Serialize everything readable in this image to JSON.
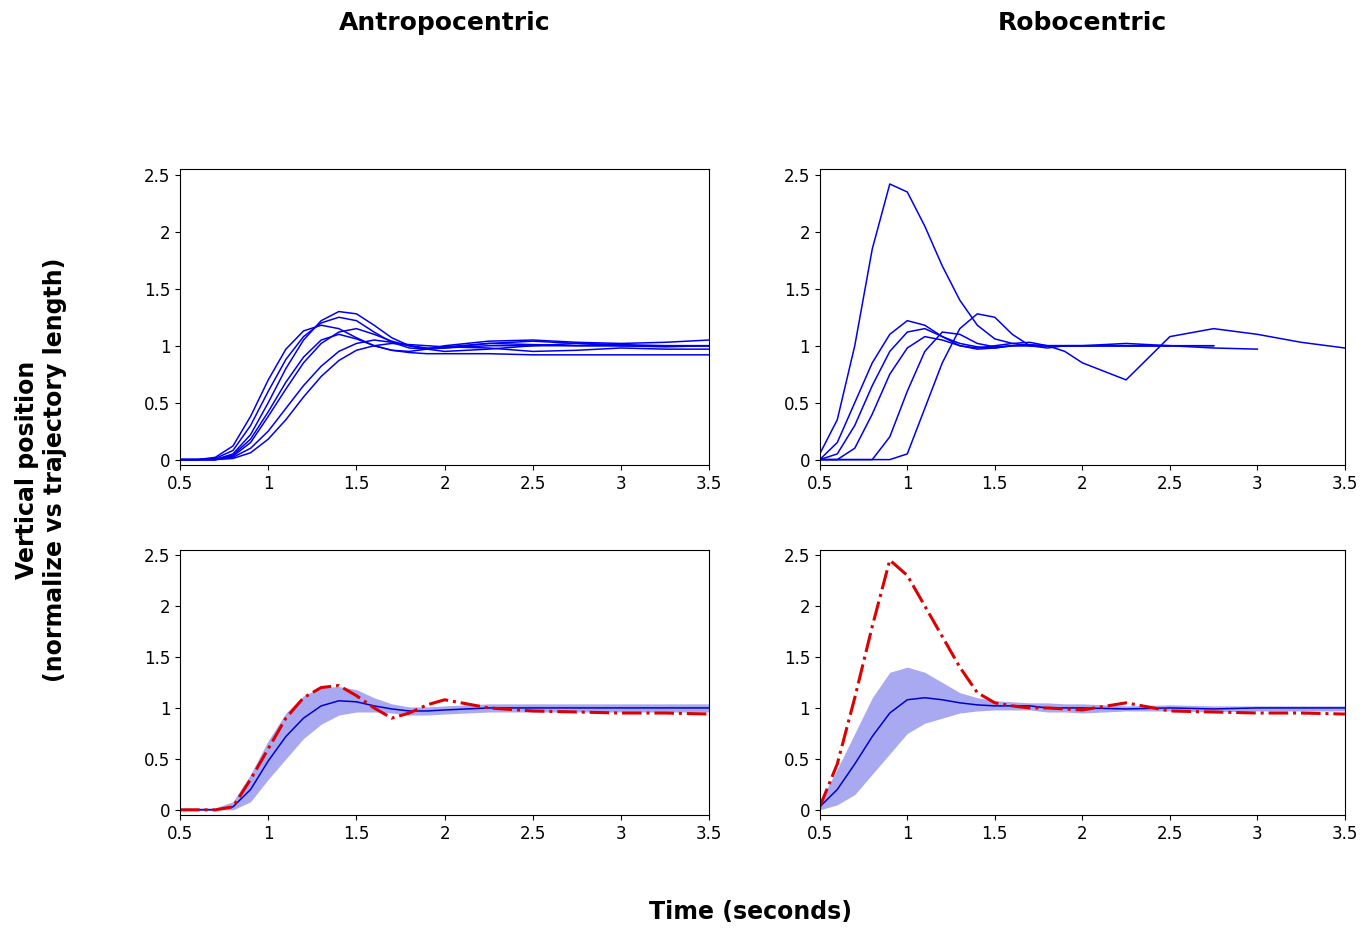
{
  "xlabel": "Time (seconds)",
  "ylabel": "Vertical position\n(normalize vs trajectory length)",
  "chart_data": [
    {
      "type": "line",
      "title": "Antropocentric",
      "x": [
        0.5,
        0.6,
        0.7,
        0.8,
        0.9,
        1.0,
        1.1,
        1.2,
        1.3,
        1.4,
        1.5,
        1.6,
        1.7,
        1.8,
        1.9,
        2.0,
        2.25,
        2.5,
        2.75,
        3.0,
        3.25,
        3.5
      ],
      "xlim": [
        0.5,
        3.5
      ],
      "xticks": [
        0.5,
        1,
        1.5,
        2,
        2.5,
        3,
        3.5
      ],
      "ylim": [
        -0.05,
        2.55
      ],
      "yticks": [
        0,
        0.5,
        1,
        1.5,
        2,
        2.5
      ],
      "series": [
        {
          "color": "#0000ee",
          "line_style": "solid",
          "values": [
            0,
            0,
            0.01,
            0.08,
            0.3,
            0.6,
            0.88,
            1.08,
            1.2,
            1.25,
            1.22,
            1.12,
            1.03,
            0.98,
            0.97,
            0.99,
            1.02,
            1.01,
            1.0,
            1.0,
            1.0,
            1.0
          ]
        },
        {
          "color": "#0000ee",
          "line_style": "solid",
          "values": [
            0,
            0,
            0,
            0.03,
            0.15,
            0.38,
            0.62,
            0.85,
            1.02,
            1.12,
            1.15,
            1.1,
            1.04,
            1.0,
            0.98,
            0.98,
            1.0,
            1.0,
            1.0,
            1.0,
            1.0,
            1.0
          ]
        },
        {
          "color": "#0000ee",
          "line_style": "solid",
          "values": [
            0,
            0,
            0,
            0.02,
            0.1,
            0.25,
            0.45,
            0.65,
            0.82,
            0.95,
            1.02,
            1.05,
            1.03,
            1.0,
            0.97,
            0.95,
            0.97,
            1.0,
            1.02,
            1.01,
            1.0,
            1.0
          ]
        },
        {
          "color": "#0000ee",
          "line_style": "solid",
          "values": [
            0,
            0,
            0,
            0.05,
            0.22,
            0.5,
            0.8,
            1.05,
            1.22,
            1.3,
            1.28,
            1.18,
            1.07,
            1.0,
            0.97,
            0.98,
            1.02,
            1.04,
            1.02,
            1.0,
            0.99,
            1.0
          ]
        },
        {
          "color": "#0000ee",
          "line_style": "solid",
          "values": [
            0,
            0,
            0,
            0.01,
            0.06,
            0.18,
            0.35,
            0.55,
            0.73,
            0.87,
            0.96,
            1.0,
            1.02,
            1.01,
            1.0,
            0.99,
            0.98,
            0.95,
            0.96,
            0.98,
            0.97,
            0.97
          ]
        },
        {
          "color": "#0000ee",
          "line_style": "solid",
          "values": [
            0,
            0,
            0.02,
            0.12,
            0.38,
            0.7,
            0.97,
            1.13,
            1.18,
            1.15,
            1.07,
            1.0,
            0.96,
            0.95,
            0.97,
            1.0,
            1.04,
            1.05,
            1.03,
            1.02,
            1.03,
            1.05
          ]
        },
        {
          "color": "#0000ee",
          "line_style": "solid",
          "values": [
            0,
            0,
            0,
            0.04,
            0.18,
            0.42,
            0.68,
            0.9,
            1.05,
            1.1,
            1.06,
            1.0,
            0.96,
            0.94,
            0.93,
            0.93,
            0.93,
            0.92,
            0.92,
            0.92,
            0.92,
            0.92
          ]
        }
      ]
    },
    {
      "type": "line",
      "title": "Robocentric",
      "x": [
        0.5,
        0.6,
        0.7,
        0.8,
        0.9,
        1.0,
        1.1,
        1.2,
        1.3,
        1.4,
        1.5,
        1.6,
        1.7,
        1.8,
        1.9,
        2.0,
        2.25,
        2.5,
        2.75,
        3.0,
        3.25,
        3.5
      ],
      "xlim": [
        0.5,
        3.5
      ],
      "xticks": [
        0.5,
        1,
        1.5,
        2,
        2.5,
        3,
        3.5
      ],
      "ylim": [
        -0.05,
        2.55
      ],
      "yticks": [
        0,
        0.5,
        1,
        1.5,
        2,
        2.5
      ],
      "series": [
        {
          "color": "#0000ee",
          "line_style": "solid",
          "values": [
            0.05,
            0.35,
            1.0,
            1.85,
            2.42,
            2.35,
            2.05,
            1.7,
            1.4,
            1.18,
            1.06,
            1.02,
            1.0,
            1.0,
            1.0,
            1.0,
            1.0,
            1.0,
            1.0,
            null,
            null,
            null
          ]
        },
        {
          "color": "#0000ee",
          "line_style": "solid",
          "values": [
            0,
            0.15,
            0.5,
            0.85,
            1.1,
            1.22,
            1.18,
            1.08,
            1.0,
            0.97,
            0.98,
            1.0,
            1.0,
            1.0,
            1.0,
            1.0,
            1.0,
            1.0,
            null,
            null,
            null,
            null
          ]
        },
        {
          "color": "#0000ee",
          "line_style": "solid",
          "values": [
            0,
            0.05,
            0.3,
            0.65,
            0.95,
            1.12,
            1.15,
            1.08,
            1.02,
            0.99,
            0.98,
            1.0,
            1.01,
            1.0,
            1.0,
            1.0,
            1.02,
            1.0,
            1.0,
            null,
            null,
            null
          ]
        },
        {
          "color": "#0000ee",
          "line_style": "solid",
          "values": [
            0,
            0,
            0,
            0,
            0,
            0.05,
            0.45,
            0.85,
            1.15,
            1.28,
            1.25,
            1.1,
            1.0,
            0.98,
            1.0,
            1.0,
            1.0,
            1.0,
            0.98,
            0.97,
            null,
            null
          ]
        },
        {
          "color": "#0000ee",
          "line_style": "solid",
          "values": [
            0,
            0,
            0.1,
            0.4,
            0.75,
            0.98,
            1.08,
            1.05,
            1.0,
            0.98,
            1.0,
            1.02,
            1.03,
            1.0,
            0.95,
            0.85,
            0.7,
            1.08,
            1.15,
            1.1,
            1.03,
            0.98
          ]
        },
        {
          "color": "#0000ee",
          "line_style": "solid",
          "values": [
            0,
            0,
            0,
            0,
            0.2,
            0.6,
            0.95,
            1.12,
            1.1,
            1.02,
            0.99,
            1.0,
            1.0,
            1.0,
            1.0,
            1.0,
            1.0,
            1.0,
            null,
            null,
            null,
            null
          ]
        }
      ]
    },
    {
      "type": "line",
      "x": [
        0.5,
        0.6,
        0.7,
        0.8,
        0.9,
        1.0,
        1.1,
        1.2,
        1.3,
        1.4,
        1.5,
        1.6,
        1.7,
        1.8,
        1.9,
        2.0,
        2.25,
        2.5,
        2.75,
        3.0,
        3.25,
        3.5
      ],
      "xlim": [
        0.5,
        3.5
      ],
      "xticks": [
        0.5,
        1,
        1.5,
        2,
        2.5,
        3,
        3.5
      ],
      "ylim": [
        -0.05,
        2.55
      ],
      "yticks": [
        0,
        0.5,
        1,
        1.5,
        2,
        2.5
      ],
      "series": [
        {
          "type": "band",
          "color": "#9a9af0",
          "lower": [
            0,
            0,
            0,
            0,
            0.08,
            0.3,
            0.5,
            0.7,
            0.84,
            0.93,
            0.96,
            0.96,
            0.95,
            0.93,
            0.93,
            0.94,
            0.96,
            0.96,
            0.96,
            0.96,
            0.96,
            0.96
          ],
          "upper": [
            0.02,
            0.02,
            0.02,
            0.08,
            0.35,
            0.68,
            0.95,
            1.12,
            1.2,
            1.21,
            1.18,
            1.1,
            1.04,
            1.01,
            1.01,
            1.02,
            1.04,
            1.04,
            1.04,
            1.04,
            1.04,
            1.04
          ]
        },
        {
          "type": "line",
          "color": "#0000cc",
          "line_style": "solid",
          "values": [
            0,
            0,
            0,
            0.03,
            0.2,
            0.48,
            0.72,
            0.9,
            1.02,
            1.07,
            1.06,
            1.02,
            0.99,
            0.97,
            0.97,
            0.98,
            1.0,
            1.0,
            1.0,
            1.0,
            1.0,
            1.0
          ]
        },
        {
          "type": "line",
          "color": "#dd0000",
          "line_style": "dashdot",
          "values": [
            0,
            0,
            0,
            0.03,
            0.3,
            0.6,
            0.9,
            1.1,
            1.2,
            1.22,
            1.12,
            1.0,
            0.9,
            0.95,
            1.03,
            1.08,
            1.0,
            0.97,
            0.96,
            0.95,
            0.95,
            0.94
          ]
        }
      ]
    },
    {
      "type": "line",
      "x": [
        0.5,
        0.6,
        0.7,
        0.8,
        0.9,
        1.0,
        1.1,
        1.2,
        1.3,
        1.4,
        1.5,
        1.6,
        1.7,
        1.8,
        1.9,
        2.0,
        2.25,
        2.5,
        2.75,
        3.0,
        3.25,
        3.5
      ],
      "xlim": [
        0.5,
        3.5
      ],
      "xticks": [
        0.5,
        1,
        1.5,
        2,
        2.5,
        3,
        3.5
      ],
      "ylim": [
        -0.05,
        2.55
      ],
      "yticks": [
        0,
        0.5,
        1,
        1.5,
        2,
        2.5
      ],
      "series": [
        {
          "type": "band",
          "color": "#9a9af0",
          "lower": [
            0,
            0.05,
            0.15,
            0.35,
            0.55,
            0.75,
            0.85,
            0.9,
            0.95,
            0.97,
            0.98,
            0.98,
            0.98,
            0.96,
            0.96,
            0.95,
            0.97,
            0.97,
            0.96,
            0.97,
            0.97,
            0.97
          ],
          "upper": [
            0.08,
            0.4,
            0.75,
            1.1,
            1.35,
            1.4,
            1.35,
            1.25,
            1.15,
            1.1,
            1.07,
            1.06,
            1.05,
            1.05,
            1.04,
            1.04,
            1.02,
            1.03,
            1.02,
            1.02,
            1.02,
            1.02
          ]
        },
        {
          "type": "line",
          "color": "#0000cc",
          "line_style": "solid",
          "values": [
            0.03,
            0.2,
            0.45,
            0.72,
            0.95,
            1.08,
            1.1,
            1.08,
            1.05,
            1.03,
            1.02,
            1.02,
            1.02,
            1.0,
            1.0,
            1.0,
            0.99,
            1.0,
            0.99,
            1.0,
            1.0,
            1.0
          ]
        },
        {
          "type": "line",
          "color": "#dd0000",
          "line_style": "dashdot",
          "values": [
            0.03,
            0.45,
            1.1,
            1.8,
            2.45,
            2.3,
            2.0,
            1.7,
            1.4,
            1.15,
            1.05,
            1.02,
            1.0,
            1.0,
            0.99,
            0.98,
            1.05,
            0.97,
            0.96,
            0.95,
            0.95,
            0.94
          ]
        }
      ]
    }
  ]
}
